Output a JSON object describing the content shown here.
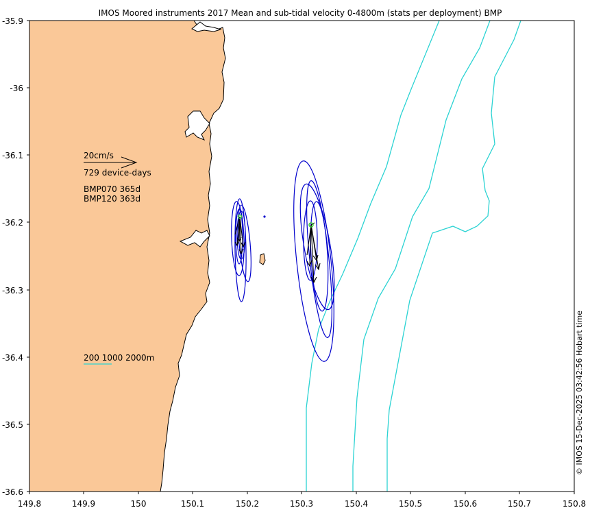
{
  "title": "IMOS Moored instruments 2017 Mean and sub-tidal velocity 0-4800m (stats per deployment) BMP",
  "credit": "© IMOS 15-Dec-2025 03:42:56 Hobart time",
  "x_ticks": [
    "149.8",
    "149.9",
    "150",
    "150.1",
    "150.2",
    "150.3",
    "150.4",
    "150.5",
    "150.6",
    "150.7",
    "150.8"
  ],
  "y_ticks": [
    "-35.9",
    "-36",
    "-36.1",
    "-36.2",
    "-36.3",
    "-36.4",
    "-36.5",
    "-36.6"
  ],
  "legend": {
    "scale_label": "20cm/s",
    "device_days": "729 device-days",
    "deployments": [
      "BMP070 365d",
      "BMP120 363d"
    ],
    "isobaths_label": "200 1000 2000m"
  },
  "colors": {
    "land": "#fac898",
    "isobath": "#2bd3d3",
    "ellipse": "#0000cc",
    "vector": "#000000",
    "mean_marker": "#33cc33"
  },
  "chart_data": {
    "type": "map",
    "xlim": [
      149.8,
      150.8
    ],
    "ylim": [
      -36.6,
      -35.9
    ],
    "moorings": [
      {
        "name": "BMP070",
        "lon": 150.19,
        "lat": -36.19
      },
      {
        "name": "BMP120",
        "lon": 150.32,
        "lat": -36.2
      }
    ]
  }
}
